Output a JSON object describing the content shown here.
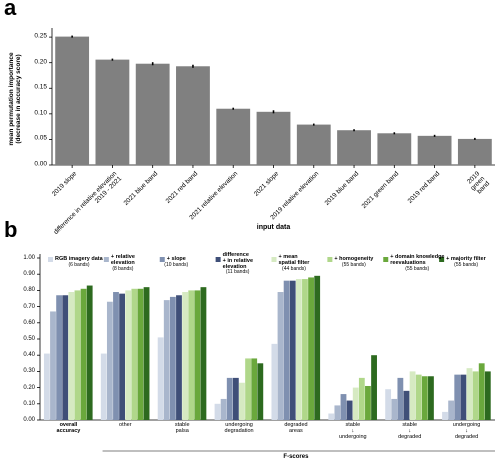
{
  "chart_data": [
    {
      "type": "bar",
      "panel": "a",
      "ylabel": "mean permutation importance\n(decrease in accuracy score)",
      "xlabel": "input data",
      "categories": [
        "2019 slope",
        "difference in relative elevation\n2019 - 2021",
        "2021 blue band",
        "2021 red band",
        "2021 relative elevation",
        "2021 slope",
        "2019 relative elevation",
        "2019 blue band",
        "2021 green band",
        "2019 red band",
        "2019 green band"
      ],
      "values": [
        0.251,
        0.206,
        0.198,
        0.193,
        0.11,
        0.104,
        0.079,
        0.068,
        0.062,
        0.057,
        0.051
      ],
      "errors": [
        0.002,
        0.002,
        0.003,
        0.003,
        0.002,
        0.003,
        0.002,
        0.002,
        0.002,
        0.002,
        0.002
      ],
      "color": "#808080",
      "ylim": [
        0,
        0.26
      ],
      "yticks": [
        {
          "value": 0,
          "label": "0.00"
        },
        {
          "value": 0.05,
          "label": "0.05"
        },
        {
          "value": 0.1,
          "label": "0.10"
        },
        {
          "value": 0.15,
          "label": "0.15"
        },
        {
          "value": 0.2,
          "label": "0.20"
        },
        {
          "value": 0.25,
          "label": "0.25"
        }
      ]
    },
    {
      "type": "grouped_bar",
      "panel": "b",
      "xlabel": "F-scores",
      "legend": "top",
      "categories": [
        "overall\naccuracy",
        "other",
        "stable\npalsa",
        "undergoing\ndegradation",
        "degraded\nareas",
        "stable\n↓\nundergoing",
        "stable\n↓\ndegraded",
        "undergoing\n↓\ndegraded"
      ],
      "series": [
        {
          "name": "RGB imagery data",
          "note": "(6 bands)",
          "color": "#d3dbe8",
          "values": [
            0.41,
            0.41,
            0.51,
            0.1,
            0.47,
            0.04,
            0.19,
            0.05
          ]
        },
        {
          "name": "+ relative\nelevation",
          "note": "(8 bands)",
          "color": "#a9b6cc",
          "values": [
            0.67,
            0.73,
            0.74,
            0.13,
            0.79,
            0.09,
            0.13,
            0.12
          ]
        },
        {
          "name": "+ slope",
          "note": "(10 bands)",
          "color": "#7f90b0",
          "values": [
            0.77,
            0.79,
            0.76,
            0.26,
            0.86,
            0.16,
            0.26,
            0.28
          ]
        },
        {
          "name": "difference\n+ in relative\nelevation",
          "note": "(11 bands)",
          "color": "#3f4f78",
          "values": [
            0.77,
            0.78,
            0.77,
            0.26,
            0.86,
            0.12,
            0.18,
            0.28
          ]
        },
        {
          "name": "+ mean\nspatial filter",
          "note": "(44 bands)",
          "color": "#d6eac2",
          "values": [
            0.79,
            0.8,
            0.79,
            0.23,
            0.87,
            0.2,
            0.3,
            0.32
          ]
        },
        {
          "name": "+ homogeneity",
          "note": "(55 bands)",
          "color": "#b0d78a",
          "values": [
            0.8,
            0.81,
            0.8,
            0.38,
            0.87,
            0.26,
            0.28,
            0.3
          ]
        },
        {
          "name": "+ domain knowledge\nreevaluations",
          "note": "(55 bands)",
          "color": "#6aa83c",
          "values": [
            0.81,
            0.81,
            0.8,
            0.38,
            0.88,
            0.21,
            0.27,
            0.35
          ]
        },
        {
          "name": "+ majority filter",
          "note": "(55 bands)",
          "color": "#2d6a1f",
          "values": [
            0.83,
            0.82,
            0.82,
            0.35,
            0.89,
            0.4,
            0.27,
            0.3
          ]
        }
      ],
      "ylim": [
        0,
        1.0
      ],
      "yticks": [
        {
          "value": 0,
          "label": "0.00"
        },
        {
          "value": 0.1,
          "label": "0.10"
        },
        {
          "value": 0.2,
          "label": "0.20"
        },
        {
          "value": 0.3,
          "label": "0.30"
        },
        {
          "value": 0.4,
          "label": "0.40"
        },
        {
          "value": 0.5,
          "label": "0.50"
        },
        {
          "value": 0.6,
          "label": "0.60"
        },
        {
          "value": 0.7,
          "label": "0.70"
        },
        {
          "value": 0.8,
          "label": "0.80"
        },
        {
          "value": 0.9,
          "label": "0.90"
        },
        {
          "value": 1.0,
          "label": "1.00"
        }
      ]
    }
  ]
}
